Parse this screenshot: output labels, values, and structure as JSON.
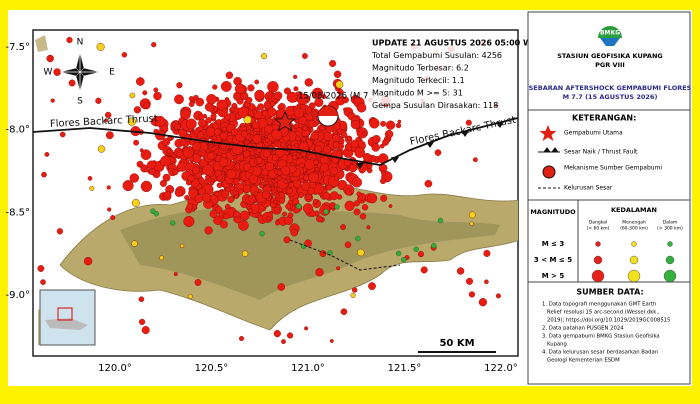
{
  "map": {
    "lat_labels": [
      "-7.5°",
      "-8.0°",
      "-8.5°",
      "-9.0°"
    ],
    "lon_labels": [
      "120.0°",
      "120.5°",
      "121.0°",
      "121.5°",
      "122.0°"
    ],
    "compass": {
      "n": "N",
      "e": "E",
      "s": "S",
      "w": "W"
    },
    "fault_labels": [
      "Flores Backarc Thrust",
      "Flores Backarc Thrust"
    ],
    "mainshock_label": "15/08/2026 (M 7.7)",
    "scale_label": "50 KM",
    "info": [
      "UPDATE 21 AGUSTUS 2026 05:00 WIB",
      "Total Gempabumi Susulan: 4256",
      "Magnitudo Terbesar: 6.2",
      "Magnitudo Terkecil: 1.1",
      "Magnitudo M >= 5: 31",
      "Gempa Susulan Dirasakan: 118"
    ]
  },
  "panel": {
    "logo": "BMKG",
    "station": "STASIUN GEOFISIKA KUPANG",
    "region": "PGR VIII",
    "title": [
      "SEBARAN AFTERSHOCK GEMPABUMI FLORES",
      "M 7.7 (15 AGUSTUS 2026)"
    ],
    "legend_title": "KETERANGAN:",
    "legend": [
      "Gempabumi Utama",
      "Sesar Naik / Thrust Fault",
      "Mekanisme Sumber Gempabumi",
      "Kelurusan Sesar"
    ],
    "magnitude_header": "MAGNITUDO",
    "depth_header": "KEDALAMAN",
    "depth_columns": [
      [
        "Dangkal",
        "(< 60 km)"
      ],
      [
        "Menengah",
        "(60-300 km)"
      ],
      [
        "Dalam",
        "(> 300 km)"
      ]
    ],
    "magnitude_rows": [
      "M ≤ 3",
      "3 < M ≤ 5",
      "M > 5"
    ],
    "sources_title": "SUMBER DATA:",
    "sources": [
      [
        "1. Data topografi menggunakan GMT Earth",
        "Relief resolusi 15 arc-second (Wessel dkk.,",
        "2019); https://doi.org/10.1029/2019GC008515"
      ],
      [
        "2. Data patahan PUSGEN 2024"
      ],
      [
        "3. Data gempabumi BMKG Stasiun Geofisika",
        "Kupang"
      ],
      [
        "4. Data kelurusan sesar berdasarkan Badan",
        "Geologi Kementerian ESDM"
      ]
    ]
  }
}
